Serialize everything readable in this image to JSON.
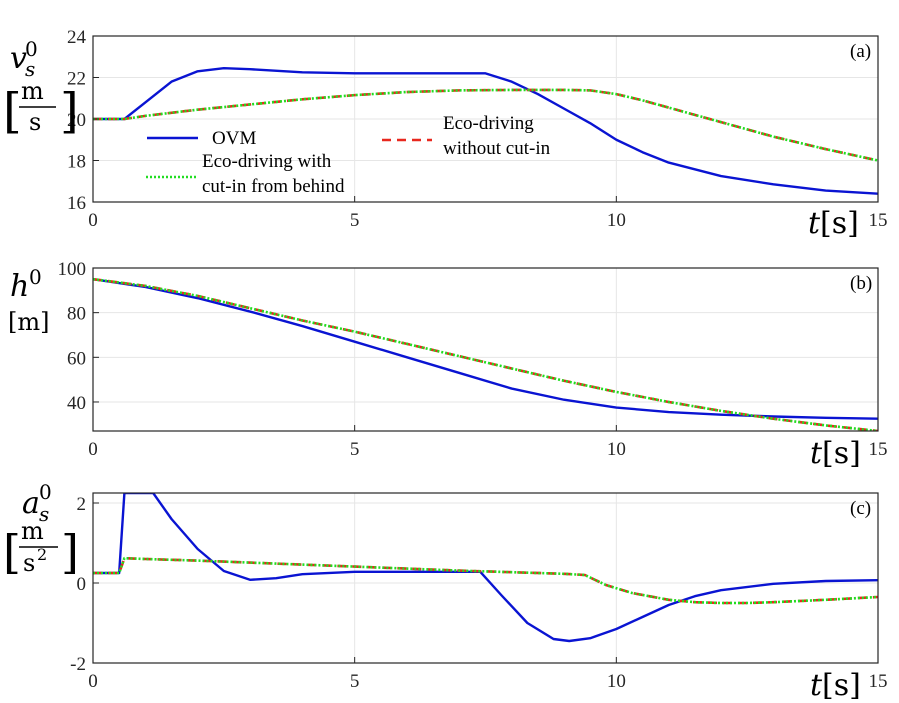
{
  "colors": {
    "ovm": "#0a14d2",
    "eco_without_cutin": "#e8281e",
    "eco_with_cutin": "#22dd22"
  },
  "legend": {
    "ovm": "OVM",
    "eco_without_cutin_line1": "Eco-driving",
    "eco_without_cutin_line2": "without cut-in",
    "eco_with_cutin_line1": "Eco-driving with",
    "eco_with_cutin_line2": "cut-in from behind"
  },
  "chart_data": [
    {
      "type": "line",
      "panel": "(a)",
      "ylabel": "v_s^0 [m/s]",
      "xlabel": "t[s]",
      "xlim": [
        0,
        15
      ],
      "ylim": [
        16,
        24
      ],
      "xticks": [
        "0",
        "5",
        "10",
        "15"
      ],
      "yticks": [
        "16",
        "18",
        "20",
        "22",
        "24"
      ],
      "grid": true,
      "legend_position": "left-bottom",
      "series": [
        {
          "name": "OVM",
          "key": "ovm",
          "x": [
            0,
            0.6,
            1,
            1.5,
            2,
            2.5,
            3,
            4,
            5,
            6,
            7,
            7.5,
            8,
            8.5,
            9,
            9.5,
            10,
            10.5,
            11,
            12,
            13,
            14,
            15
          ],
          "y": [
            20,
            20,
            20.8,
            21.8,
            22.3,
            22.45,
            22.4,
            22.25,
            22.2,
            22.2,
            22.2,
            22.2,
            21.8,
            21.2,
            20.5,
            19.8,
            19.0,
            18.4,
            17.9,
            17.25,
            16.85,
            16.55,
            16.4
          ]
        },
        {
          "name": "Eco-driving without cut-in",
          "key": "eco_without_cutin",
          "x": [
            0,
            0.6,
            1,
            2,
            3,
            4,
            5,
            6,
            7,
            8,
            9,
            9.5,
            10,
            10.5,
            11,
            12,
            13,
            14,
            15
          ],
          "y": [
            20,
            20,
            20.15,
            20.45,
            20.7,
            20.95,
            21.15,
            21.3,
            21.38,
            21.4,
            21.4,
            21.38,
            21.2,
            20.9,
            20.55,
            19.85,
            19.15,
            18.55,
            18.0
          ]
        },
        {
          "name": "Eco-driving with cut-in from behind",
          "key": "eco_with_cutin",
          "x": [
            0,
            0.6,
            1,
            2,
            3,
            4,
            5,
            6,
            7,
            8,
            9,
            9.5,
            10,
            10.5,
            11,
            12,
            13,
            14,
            15
          ],
          "y": [
            20,
            20,
            20.15,
            20.45,
            20.7,
            20.95,
            21.15,
            21.3,
            21.38,
            21.4,
            21.4,
            21.38,
            21.2,
            20.9,
            20.55,
            19.85,
            19.15,
            18.55,
            18.0
          ]
        }
      ]
    },
    {
      "type": "line",
      "panel": "(b)",
      "ylabel": "h^0 [m]",
      "xlabel": "t[s]",
      "xlim": [
        0,
        15
      ],
      "ylim": [
        27,
        100
      ],
      "xticks": [
        "0",
        "5",
        "10",
        "15"
      ],
      "yticks": [
        "40",
        "60",
        "80",
        "100"
      ],
      "grid": true,
      "series": [
        {
          "name": "OVM",
          "key": "ovm",
          "x": [
            0,
            1,
            2,
            3,
            4,
            5,
            6,
            7,
            8,
            9,
            10,
            11,
            12,
            13,
            14,
            15
          ],
          "y": [
            95,
            91.5,
            86.5,
            80.5,
            74,
            67,
            60,
            53,
            46,
            41,
            37.5,
            35.5,
            34.3,
            33.5,
            32.9,
            32.5
          ]
        },
        {
          "name": "Eco-driving without cut-in",
          "key": "eco_without_cutin",
          "x": [
            0,
            1,
            2,
            3,
            4,
            5,
            6,
            7,
            8,
            9,
            10,
            11,
            12,
            13,
            14,
            15
          ],
          "y": [
            95,
            92,
            87.5,
            82,
            76.5,
            71.5,
            66,
            60.5,
            55,
            49.5,
            44.5,
            40,
            36,
            32.5,
            29.5,
            27
          ]
        },
        {
          "name": "Eco-driving with cut-in from behind",
          "key": "eco_with_cutin",
          "x": [
            0,
            1,
            2,
            3,
            4,
            5,
            6,
            7,
            8,
            9,
            10,
            11,
            12,
            13,
            14,
            15
          ],
          "y": [
            95,
            92,
            87.5,
            82,
            76.5,
            71.5,
            66,
            60.5,
            55,
            49.5,
            44.5,
            40,
            36,
            32.5,
            29.5,
            27
          ]
        }
      ]
    },
    {
      "type": "line",
      "panel": "(c)",
      "ylabel": "a_s^0 [m/s^2]",
      "xlabel": "t[s]",
      "xlim": [
        0,
        15
      ],
      "ylim": [
        -2,
        2.25
      ],
      "xticks": [
        "0",
        "5",
        "10",
        "15"
      ],
      "yticks": [
        "-2",
        "0",
        "2"
      ],
      "grid": true,
      "series": [
        {
          "name": "OVM",
          "key": "ovm",
          "x": [
            0,
            0.5,
            0.6,
            1.15,
            1.5,
            2,
            2.5,
            3,
            3.5,
            4,
            5,
            6,
            7,
            7.4,
            7.8,
            8.3,
            8.8,
            9.1,
            9.5,
            10,
            10.5,
            11,
            11.5,
            12,
            13,
            14,
            15
          ],
          "y": [
            0.25,
            0.25,
            2.25,
            2.25,
            1.6,
            0.85,
            0.3,
            0.08,
            0.12,
            0.22,
            0.28,
            0.28,
            0.28,
            0.28,
            -0.3,
            -1.0,
            -1.4,
            -1.45,
            -1.38,
            -1.15,
            -0.85,
            -0.55,
            -0.33,
            -0.18,
            -0.02,
            0.05,
            0.07
          ]
        },
        {
          "name": "Eco-driving without cut-in",
          "key": "eco_without_cutin",
          "x": [
            0,
            0.5,
            0.6,
            1,
            2,
            3,
            4,
            5,
            6,
            7,
            8,
            9,
            9.4,
            9.8,
            10.3,
            11,
            11.5,
            12,
            12.5,
            13,
            14,
            15
          ],
          "y": [
            0.25,
            0.25,
            0.62,
            0.6,
            0.56,
            0.51,
            0.46,
            0.41,
            0.36,
            0.31,
            0.27,
            0.23,
            0.2,
            -0.05,
            -0.25,
            -0.42,
            -0.48,
            -0.5,
            -0.5,
            -0.48,
            -0.42,
            -0.35
          ]
        },
        {
          "name": "Eco-driving with cut-in from behind",
          "key": "eco_with_cutin",
          "x": [
            0,
            0.5,
            0.6,
            1,
            2,
            3,
            4,
            5,
            6,
            7,
            8,
            9,
            9.4,
            9.8,
            10.3,
            11,
            11.5,
            12,
            12.5,
            13,
            14,
            15
          ],
          "y": [
            0.25,
            0.25,
            0.62,
            0.6,
            0.56,
            0.51,
            0.46,
            0.41,
            0.36,
            0.31,
            0.27,
            0.23,
            0.2,
            -0.05,
            -0.25,
            -0.42,
            -0.48,
            -0.5,
            -0.5,
            -0.48,
            -0.42,
            -0.35
          ]
        }
      ]
    }
  ]
}
